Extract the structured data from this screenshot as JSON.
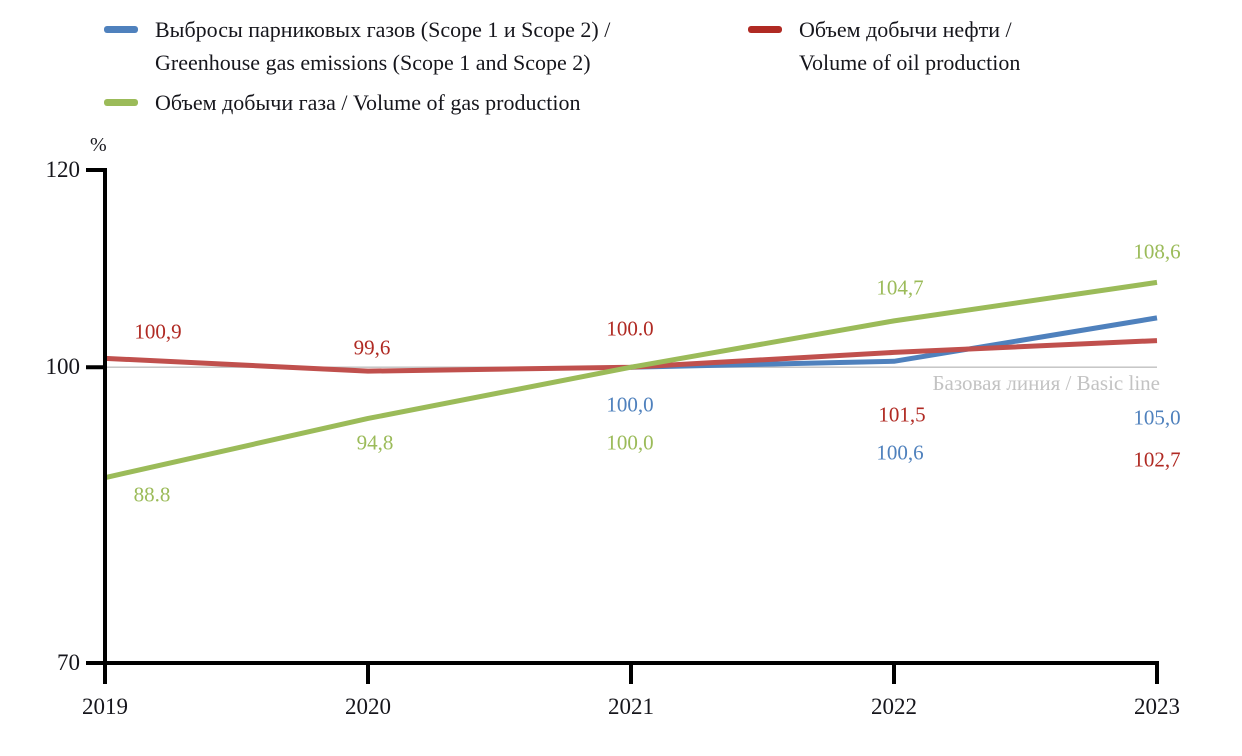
{
  "legend": {
    "items": [
      {
        "id": "emissions",
        "color": "#4f81bd",
        "line1": "Выбросы парниковых газов (Scope 1 и Scope 2) /",
        "line2": "Greenhouse gas emissions (Scope 1 and Scope 2)"
      },
      {
        "id": "gas",
        "color": "#9bbb59",
        "line1": "Объем добычи газа / Volume of gas production",
        "line2": ""
      },
      {
        "id": "oil",
        "color": "#b02a23",
        "line1": "Объем добычи нефти /",
        "line2": "Volume of oil production"
      }
    ]
  },
  "chart_data": {
    "type": "line",
    "unit": "%",
    "x_labels": [
      "2019",
      "2020",
      "2021",
      "2022",
      "2023"
    ],
    "ylim": [
      70,
      120
    ],
    "yticks": [
      120,
      100,
      70
    ],
    "grid": false,
    "legend_position": "top",
    "baseline": {
      "value": 100,
      "label": "Базовая линия / Basic line",
      "color": "#bfbfbf"
    },
    "series": [
      {
        "key": "emissions",
        "name": "Выбросы парниковых газов (Scope 1 и Scope 2) / Greenhouse gas emissions (Scope 1 and Scope 2)",
        "color": "#4f81bd",
        "label_color": "#4f81bd",
        "values": [
          null,
          null,
          100.0,
          100.6,
          105.0
        ],
        "point_labels": [
          "",
          "",
          "100,0",
          "100,6",
          "105,0"
        ]
      },
      {
        "key": "oil",
        "name": "Объем добычи нефти / Volume of oil production",
        "color": "#c0504d",
        "label_color": "#b02a23",
        "values": [
          100.9,
          99.6,
          100.0,
          101.5,
          102.7
        ],
        "point_labels": [
          "100,9",
          "99,6",
          "100.0",
          "101,5",
          "102,7"
        ]
      },
      {
        "key": "gas",
        "name": "Объем добычи газа / Volume of gas production",
        "color": "#9bbb59",
        "label_color": "#9bbb59",
        "values": [
          88.8,
          94.8,
          100.0,
          104.7,
          108.6
        ],
        "point_labels": [
          "88.8",
          "94,8",
          "100,0",
          "104,7",
          "108,6"
        ]
      }
    ]
  }
}
